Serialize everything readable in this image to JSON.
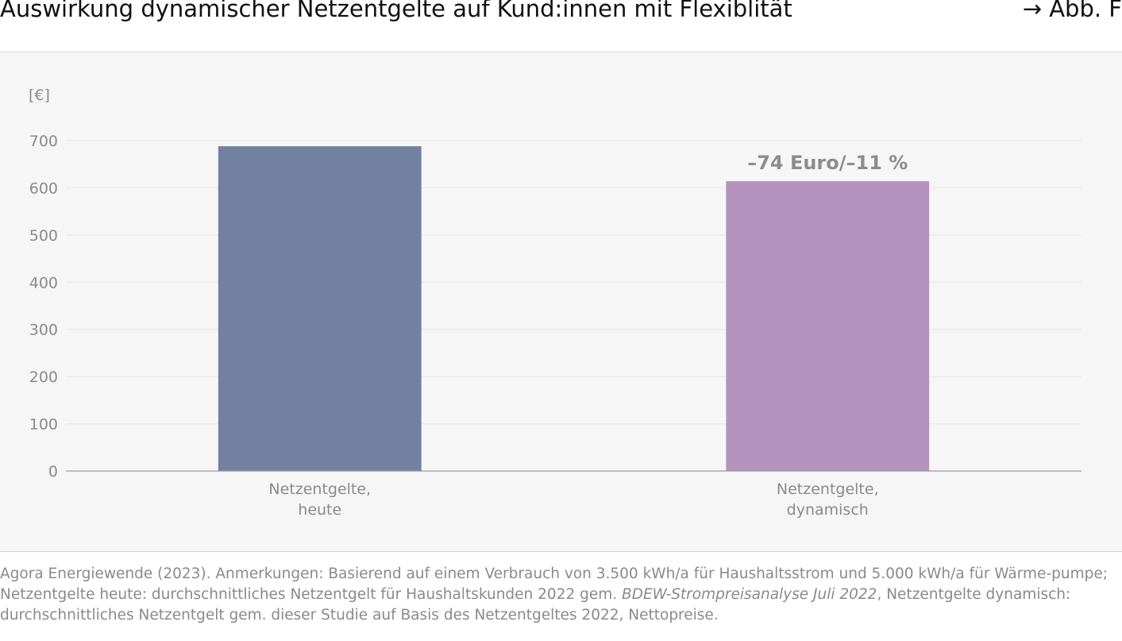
{
  "header": {
    "title": "Auswirkung dynamischer Netzentgelte auf Kund:innen mit Flexiblität",
    "figure_ref": "→ Abb. F"
  },
  "chart_data": {
    "type": "bar",
    "ylabel": "[€]",
    "ylim": [
      0,
      700
    ],
    "yticks": [
      0,
      100,
      200,
      300,
      400,
      500,
      600,
      700
    ],
    "grid": true,
    "categories": [
      [
        "Netzentgelte,",
        "heute"
      ],
      [
        "Netzentgelte,",
        "dynamisch"
      ]
    ],
    "values": [
      688,
      614
    ],
    "colors": [
      "#71819f",
      "#b592bd"
    ],
    "annotation": {
      "text": "–74 Euro/–11 %",
      "category_index": 1
    }
  },
  "footnote": {
    "part1": "Agora Energiewende (2023). Anmerkungen: Basierend auf einem Verbrauch von 3.500 kWh/a für Haushaltsstrom und 5.000 kWh/a für Wärme-pumpe; Netzentgelte heute: durchschnittliches Netzentgelt für Haushaltskunden 2022 gem. ",
    "source_italic": "BDEW-Strompreisanalyse Juli 2022",
    "part2": ", Netzentgelte dynamisch: durchschnittliches Netzentgelt gem. dieser Studie auf Basis des Netzentgeltes 2022, Nettopreise."
  }
}
